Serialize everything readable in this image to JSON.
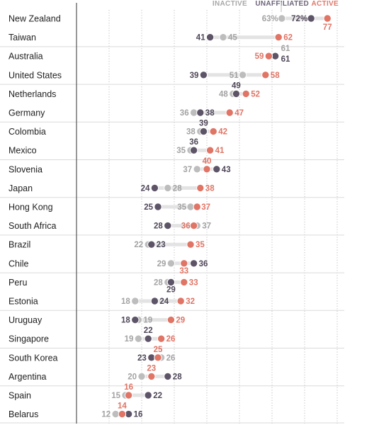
{
  "chart_data": {
    "type": "dot",
    "x_domain": [
      0,
      80
    ],
    "grid": true,
    "legend": [
      {
        "key": "inactive",
        "label": "INACTIVE",
        "color": "#b9b9b9"
      },
      {
        "key": "unaffiliated",
        "label": "UNAFFILIATED",
        "color": "#6e6479"
      },
      {
        "key": "active",
        "label": "ACTIVE",
        "color": "#e0786a"
      }
    ],
    "colors": {
      "inactive": "#bdbdbd",
      "unaffiliated": "#5e5468",
      "active": "#e07465",
      "connector": "#e3e3e3",
      "axis": "#555555",
      "grid": "#bfbfbf"
    },
    "countries": [
      {
        "name": "New Zealand",
        "inactive": 63,
        "unaffiliated": 72,
        "active": 77,
        "labels": {
          "inactive": "63%",
          "unaffiliated": "72%",
          "active": "77"
        }
      },
      {
        "name": "Taiwan",
        "inactive": 45,
        "unaffiliated": 41,
        "active": 62
      },
      {
        "name": "Australia",
        "inactive": 61,
        "unaffiliated": 61,
        "active": 59
      },
      {
        "name": "United States",
        "inactive": 51,
        "unaffiliated": 39,
        "active": 58
      },
      {
        "name": "Netherlands",
        "inactive": 48,
        "unaffiliated": 49,
        "active": 52
      },
      {
        "name": "Germany",
        "inactive": 36,
        "unaffiliated": 38,
        "active": 47
      },
      {
        "name": "Colombia",
        "inactive": 38,
        "unaffiliated": 39,
        "active": 42
      },
      {
        "name": "Mexico",
        "inactive": 35,
        "unaffiliated": 36,
        "active": 41
      },
      {
        "name": "Slovenia",
        "inactive": 37,
        "unaffiliated": 43,
        "active": 40
      },
      {
        "name": "Japan",
        "inactive": 28,
        "unaffiliated": 24,
        "active": 38
      },
      {
        "name": "Hong Kong",
        "inactive": 35,
        "unaffiliated": 25,
        "active": 37
      },
      {
        "name": "South Africa",
        "inactive": 37,
        "unaffiliated": 28,
        "active": 36
      },
      {
        "name": "Brazil",
        "inactive": 22,
        "unaffiliated": 23,
        "active": 35
      },
      {
        "name": "Chile",
        "inactive": 29,
        "unaffiliated": 36,
        "active": 33
      },
      {
        "name": "Peru",
        "inactive": 28,
        "unaffiliated": 29,
        "active": 33
      },
      {
        "name": "Estonia",
        "inactive": 18,
        "unaffiliated": 24,
        "active": 32
      },
      {
        "name": "Uruguay",
        "inactive": 19,
        "unaffiliated": 18,
        "active": 29
      },
      {
        "name": "Singapore",
        "inactive": 19,
        "unaffiliated": 22,
        "active": 26
      },
      {
        "name": "South Korea",
        "inactive": 26,
        "unaffiliated": 23,
        "active": 25
      },
      {
        "name": "Argentina",
        "inactive": 20,
        "unaffiliated": 28,
        "active": 23
      },
      {
        "name": "Spain",
        "inactive": 15,
        "unaffiliated": 22,
        "active": 16
      },
      {
        "name": "Belarus",
        "inactive": 12,
        "unaffiliated": 16,
        "active": 14
      }
    ]
  }
}
